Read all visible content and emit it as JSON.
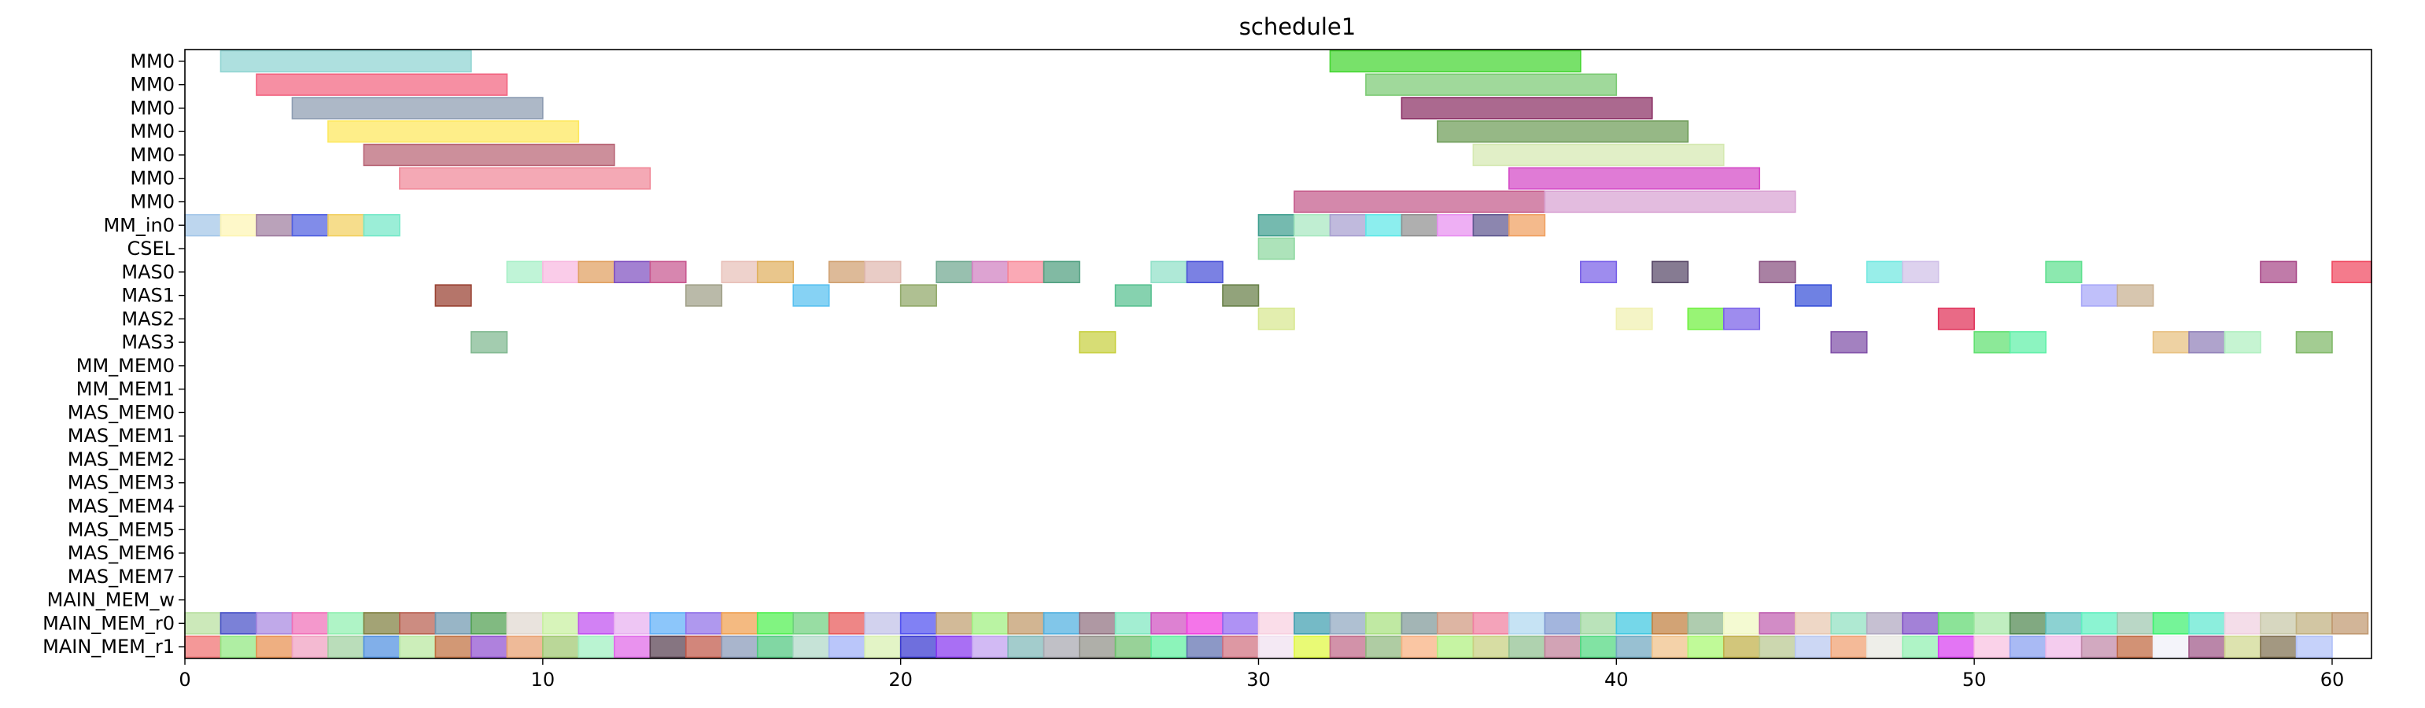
{
  "chart_data": {
    "type": "gantt",
    "title": "schedule1",
    "xlim": [
      0,
      61.1
    ],
    "xticks": [
      0,
      10,
      20,
      30,
      40,
      50,
      60
    ],
    "rows": [
      "MM0",
      "MM0",
      "MM0",
      "MM0",
      "MM0",
      "MM0",
      "MM0",
      "MM_in0",
      "CSEL",
      "MAS0",
      "MAS1",
      "MAS2",
      "MAS3",
      "MM_MEM0",
      "MM_MEM1",
      "MAS_MEM0",
      "MAS_MEM1",
      "MAS_MEM2",
      "MAS_MEM3",
      "MAS_MEM4",
      "MAS_MEM5",
      "MAS_MEM6",
      "MAS_MEM7",
      "MAIN_MEM_w",
      "MAIN_MEM_r0",
      "MAIN_MEM_r1"
    ],
    "tasks": [
      {
        "row": 0,
        "start": 1,
        "end": 8,
        "color": "#8fd4d2"
      },
      {
        "row": 0,
        "start": 32,
        "end": 39,
        "color": "#44d630"
      },
      {
        "row": 1,
        "start": 2,
        "end": 9,
        "color": "#f26480"
      },
      {
        "row": 1,
        "start": 33,
        "end": 40,
        "color": "#7ccb74"
      },
      {
        "row": 2,
        "start": 3,
        "end": 10,
        "color": "#8d9cb2"
      },
      {
        "row": 2,
        "start": 34,
        "end": 41,
        "color": "#8a2f64"
      },
      {
        "row": 3,
        "start": 4,
        "end": 11,
        "color": "#fde85c"
      },
      {
        "row": 3,
        "start": 35,
        "end": 42,
        "color": "#6e9c58"
      },
      {
        "row": 4,
        "start": 5,
        "end": 12,
        "color": "#b86475"
      },
      {
        "row": 4,
        "start": 36,
        "end": 43,
        "color": "#d5e9b2"
      },
      {
        "row": 5,
        "start": 6,
        "end": 13,
        "color": "#f08898"
      },
      {
        "row": 5,
        "start": 37,
        "end": 44,
        "color": "#d448c6"
      },
      {
        "row": 6,
        "start": 31,
        "end": 38,
        "color": "#c45a8a"
      },
      {
        "row": 6,
        "start": 38,
        "end": 45,
        "color": "#d8a2d2"
      },
      {
        "row": 7,
        "start": 0,
        "end": 1,
        "color": "#a3c6e8"
      },
      {
        "row": 7,
        "start": 1,
        "end": 2,
        "color": "#fdf5b4"
      },
      {
        "row": 7,
        "start": 2,
        "end": 3,
        "color": "#a07ea0"
      },
      {
        "row": 7,
        "start": 3,
        "end": 4,
        "color": "#5060e0"
      },
      {
        "row": 7,
        "start": 4,
        "end": 5,
        "color": "#f2d060"
      },
      {
        "row": 7,
        "start": 5,
        "end": 6,
        "color": "#74e8c8"
      },
      {
        "row": 7,
        "start": 30,
        "end": 31,
        "color": "#40a090"
      },
      {
        "row": 7,
        "start": 31,
        "end": 32,
        "color": "#a8e8c0"
      },
      {
        "row": 7,
        "start": 32,
        "end": 33,
        "color": "#a8a0d0"
      },
      {
        "row": 7,
        "start": 33,
        "end": 34,
        "color": "#60e8e8"
      },
      {
        "row": 7,
        "start": 34,
        "end": 35,
        "color": "#909090"
      },
      {
        "row": 7,
        "start": 35,
        "end": 36,
        "color": "#e890f0"
      },
      {
        "row": 7,
        "start": 36,
        "end": 37,
        "color": "#605890"
      },
      {
        "row": 7,
        "start": 37,
        "end": 38,
        "color": "#f0a060"
      },
      {
        "row": 8,
        "start": 30,
        "end": 31,
        "color": "#8ed8a0"
      },
      {
        "row": 9,
        "start": 9,
        "end": 10,
        "color": "#a8f0c8"
      },
      {
        "row": 9,
        "start": 10,
        "end": 11,
        "color": "#f8b8e0"
      },
      {
        "row": 9,
        "start": 11,
        "end": 12,
        "color": "#e0a060"
      },
      {
        "row": 9,
        "start": 12,
        "end": 13,
        "color": "#8050c0"
      },
      {
        "row": 9,
        "start": 13,
        "end": 14,
        "color": "#c85890"
      },
      {
        "row": 9,
        "start": 15,
        "end": 16,
        "color": "#e8c0b8"
      },
      {
        "row": 9,
        "start": 16,
        "end": 17,
        "color": "#e0b060"
      },
      {
        "row": 9,
        "start": 18,
        "end": 19,
        "color": "#d0a070"
      },
      {
        "row": 9,
        "start": 19,
        "end": 20,
        "color": "#e0b8b0"
      },
      {
        "row": 9,
        "start": 21,
        "end": 22,
        "color": "#70a890"
      },
      {
        "row": 9,
        "start": 22,
        "end": 23,
        "color": "#d080c0"
      },
      {
        "row": 9,
        "start": 23,
        "end": 24,
        "color": "#f88898"
      },
      {
        "row": 9,
        "start": 24,
        "end": 25,
        "color": "#50a080"
      },
      {
        "row": 9,
        "start": 27,
        "end": 28,
        "color": "#90e0c8"
      },
      {
        "row": 9,
        "start": 28,
        "end": 29,
        "color": "#4850d8"
      },
      {
        "row": 9,
        "start": 39,
        "end": 40,
        "color": "#7860e8"
      },
      {
        "row": 9,
        "start": 41,
        "end": 42,
        "color": "#584868"
      },
      {
        "row": 9,
        "start": 44,
        "end": 45,
        "color": "#885080"
      },
      {
        "row": 9,
        "start": 47,
        "end": 48,
        "color": "#70e8e0"
      },
      {
        "row": 9,
        "start": 48,
        "end": 49,
        "color": "#d0c0e8"
      },
      {
        "row": 9,
        "start": 52,
        "end": 53,
        "color": "#60e090"
      },
      {
        "row": 9,
        "start": 58,
        "end": 59,
        "color": "#a84888"
      },
      {
        "row": 9,
        "start": 60,
        "end": 61.1,
        "color": "#f04860"
      },
      {
        "row": 10,
        "start": 7,
        "end": 8,
        "color": "#984030"
      },
      {
        "row": 10,
        "start": 14,
        "end": 15,
        "color": "#a0a088"
      },
      {
        "row": 10,
        "start": 17,
        "end": 18,
        "color": "#58c0f0"
      },
      {
        "row": 10,
        "start": 20,
        "end": 21,
        "color": "#90a868"
      },
      {
        "row": 10,
        "start": 26,
        "end": 27,
        "color": "#58c090"
      },
      {
        "row": 10,
        "start": 29,
        "end": 30,
        "color": "#688048"
      },
      {
        "row": 10,
        "start": 45,
        "end": 46,
        "color": "#3850d8"
      },
      {
        "row": 10,
        "start": 53,
        "end": 54,
        "color": "#a8a8f8"
      },
      {
        "row": 10,
        "start": 54,
        "end": 55,
        "color": "#c8b090"
      },
      {
        "row": 11,
        "start": 30,
        "end": 31,
        "color": "#d8e890"
      },
      {
        "row": 11,
        "start": 40,
        "end": 41,
        "color": "#f0f0b0"
      },
      {
        "row": 11,
        "start": 42,
        "end": 43,
        "color": "#70f040"
      },
      {
        "row": 11,
        "start": 43,
        "end": 44,
        "color": "#7860e8"
      },
      {
        "row": 11,
        "start": 49,
        "end": 50,
        "color": "#e03058"
      },
      {
        "row": 12,
        "start": 8,
        "end": 9,
        "color": "#80b890"
      },
      {
        "row": 12,
        "start": 25,
        "end": 26,
        "color": "#c8d040"
      },
      {
        "row": 12,
        "start": 46,
        "end": 47,
        "color": "#8050a8"
      },
      {
        "row": 12,
        "start": 50,
        "end": 51,
        "color": "#60e070"
      },
      {
        "row": 12,
        "start": 51,
        "end": 52,
        "color": "#60f0a8"
      },
      {
        "row": 12,
        "start": 55,
        "end": 56,
        "color": "#e8c080"
      },
      {
        "row": 12,
        "start": 56,
        "end": 57,
        "color": "#9080b8"
      },
      {
        "row": 12,
        "start": 57,
        "end": 58,
        "color": "#b0f0c0"
      },
      {
        "row": 12,
        "start": 59,
        "end": 60,
        "color": "#80b868"
      }
    ],
    "row24_colors": [
      "#b8e0a0",
      "#4850c8",
      "#a888e0",
      "#f070b8",
      "#90f0b0",
      "#808040",
      "#b86050",
      "#7098b0",
      "#50a050",
      "#e0d8d0",
      "#c8f0a0",
      "#c050f0",
      "#e8b0f0",
      "#60b0f8",
      "#9070e8",
      "#f0a050",
      "#50f050",
      "#70d080",
      "#e85858",
      "#c0c0e8",
      "#5050f0",
      "#c0a070",
      "#a0f080",
      "#c09868",
      "#50b0e0",
      "#907080",
      "#80e8c0",
      "#d050c0",
      "#f040e0",
      "#9068f0",
      "#f8d0e0",
      "#40a0b0",
      "#90a8c0",
      "#a8e080",
      "#809898",
      "#d09880",
      "#f080a0",
      "#b0d8f0",
      "#8098d0",
      "#a0d8a0",
      "#40c8e0",
      "#c08040",
      "#90b890",
      "#f0f8c0",
      "#c060b0",
      "#e8c8b0",
      "#90e0c0",
      "#b0a8c0",
      "#8050c8",
      "#60d870",
      "#a8e8a8",
      "#508850",
      "#60c0c0",
      "#60f0c0",
      "#a0c8b0",
      "#40f070",
      "#60e8d0",
      "#f0d0e0",
      "#c8c8a8",
      "#c0b080",
      "#c09870"
    ],
    "row25_colors": [
      "#f07070",
      "#90e880",
      "#e89050",
      "#f0a0c0",
      "#a0d0a0",
      "#5090e0",
      "#b8e8a0",
      "#c07040",
      "#9050d0",
      "#e8a070",
      "#a0c870",
      "#a0f0c0",
      "#e068e8",
      "#584050",
      "#c05848",
      "#8898b8",
      "#50c880",
      "#b0d8c8",
      "#a0b0f8",
      "#d8f0b0",
      "#3838d0",
      "#8838f0",
      "#c0a0f0",
      "#80b8b8",
      "#a8a8b0",
      "#909088",
      "#70c070",
      "#60f0a0",
      "#6070b0",
      "#d07080",
      "#f0e0f0",
      "#e0f840",
      "#c06888",
      "#90b880",
      "#f8b080",
      "#b0f080",
      "#c8d080",
      "#90c090",
      "#c08098",
      "#50d880",
      "#70a8c0",
      "#f0c088",
      "#a8f870",
      "#c0b048",
      "#b8c890",
      "#b8c8f0",
      "#f0a070",
      "#e8e8e0",
      "#90f0b0",
      "#d840f0",
      "#f8c0e0",
      "#88a0f0",
      "#f0b8e8",
      "#c088a8",
      "#c06840",
      "#f0f0f8",
      "#a05888",
      "#d0d890",
      "#807050",
      "#b0c0f8"
    ]
  }
}
